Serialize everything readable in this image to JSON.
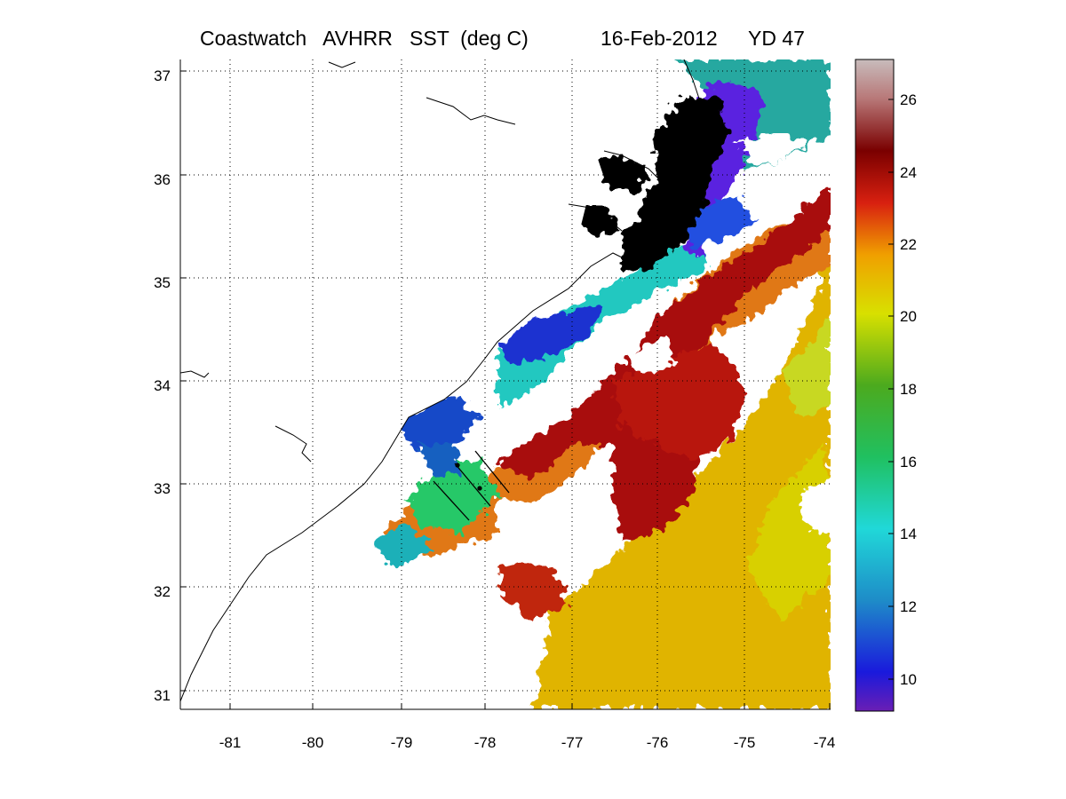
{
  "title": {
    "product": "Coastwatch   AVHRR   SST  (deg C)",
    "date": "16-Feb-2012",
    "yearday": "YD 47"
  },
  "map": {
    "lon_range": [
      -81.55,
      -74.0
    ],
    "lat_range": [
      30.8,
      37.1
    ],
    "lon_ticks": [
      "-81",
      "-80",
      "-79",
      "-78",
      "-77",
      "-76",
      "-75",
      "-74"
    ],
    "lat_ticks": [
      "37",
      "36",
      "35",
      "34",
      "33",
      "32",
      "31"
    ],
    "grid": "dotted",
    "land_fill": "white",
    "cloud_fill": "white",
    "estuary_fill": "#000000"
  },
  "colorbar": {
    "range": [
      9,
      27
    ],
    "ticks": [
      "26",
      "24",
      "22",
      "20",
      "18",
      "16",
      "14",
      "12",
      "10"
    ],
    "stops": [
      "#6a1eb4",
      "#1a1adc",
      "#1e8cc8",
      "#20d8d8",
      "#20c060",
      "#4caa1e",
      "#d8e000",
      "#f0a000",
      "#d82010",
      "#7a0000",
      "#b87878",
      "#c8bcbc"
    ]
  }
}
